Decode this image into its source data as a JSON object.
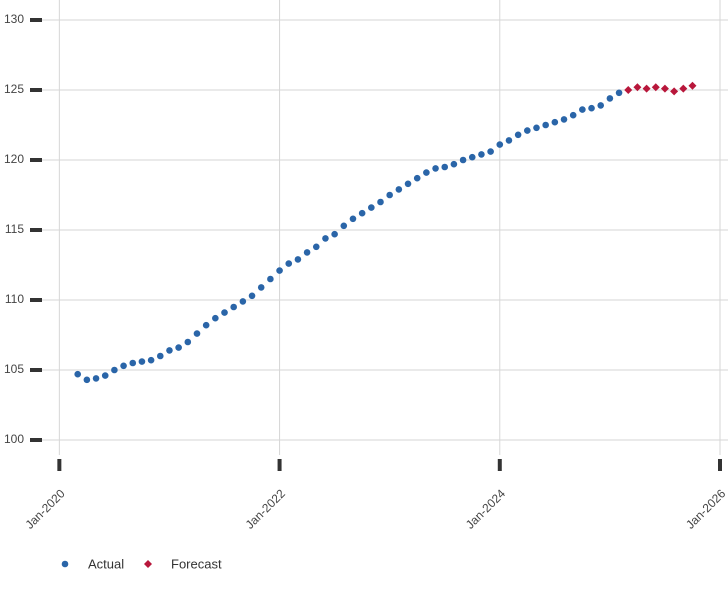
{
  "chart_data": {
    "type": "scatter",
    "series": [
      {
        "name": "Actual",
        "color": "#2a65a8",
        "marker": "circle",
        "x": [
          "2020-03",
          "2020-04",
          "2020-05",
          "2020-06",
          "2020-07",
          "2020-08",
          "2020-09",
          "2020-10",
          "2020-11",
          "2020-12",
          "2021-01",
          "2021-02",
          "2021-03",
          "2021-04",
          "2021-05",
          "2021-06",
          "2021-07",
          "2021-08",
          "2021-09",
          "2021-10",
          "2021-11",
          "2021-12",
          "2022-01",
          "2022-02",
          "2022-03",
          "2022-04",
          "2022-05",
          "2022-06",
          "2022-07",
          "2022-08",
          "2022-09",
          "2022-10",
          "2022-11",
          "2022-12",
          "2023-01",
          "2023-02",
          "2023-03",
          "2023-04",
          "2023-05",
          "2023-06",
          "2023-07",
          "2023-08",
          "2023-09",
          "2023-10",
          "2023-11",
          "2023-12",
          "2024-01",
          "2024-02",
          "2024-03",
          "2024-04",
          "2024-05",
          "2024-06",
          "2024-07",
          "2024-08",
          "2024-09",
          "2024-10",
          "2024-11",
          "2024-12",
          "2025-01",
          "2025-02"
        ],
        "values": [
          104.7,
          104.3,
          104.4,
          104.6,
          105.0,
          105.3,
          105.5,
          105.6,
          105.7,
          106.0,
          106.4,
          106.6,
          107.0,
          107.6,
          108.2,
          108.7,
          109.1,
          109.5,
          109.9,
          110.3,
          110.9,
          111.5,
          112.1,
          112.6,
          112.9,
          113.4,
          113.8,
          114.4,
          114.7,
          115.3,
          115.8,
          116.2,
          116.6,
          117.0,
          117.5,
          117.9,
          118.3,
          118.7,
          119.1,
          119.4,
          119.5,
          119.7,
          120.0,
          120.2,
          120.4,
          120.6,
          121.1,
          121.4,
          121.8,
          122.1,
          122.3,
          122.5,
          122.7,
          122.9,
          123.2,
          123.6,
          123.7,
          123.9,
          124.4,
          124.8
        ]
      },
      {
        "name": "Forecast",
        "color": "#b8173b",
        "marker": "diamond",
        "x": [
          "2025-03",
          "2025-04",
          "2025-05",
          "2025-06",
          "2025-07",
          "2025-08",
          "2025-09",
          "2025-10"
        ],
        "values": [
          125.0,
          125.2,
          125.1,
          125.2,
          125.1,
          124.9,
          125.1,
          125.3
        ]
      }
    ],
    "xlim": [
      "2019-11",
      "2026-01"
    ],
    "xticks": [
      {
        "value": "2020-01",
        "label": "Jan-2020"
      },
      {
        "value": "2022-01",
        "label": "Jan-2022"
      },
      {
        "value": "2024-01",
        "label": "Jan-2024"
      },
      {
        "value": "2026-01",
        "label": "Jan-2026"
      }
    ],
    "ylim": [
      99,
      131
    ],
    "yticks": [
      100,
      105,
      110,
      115,
      120,
      125,
      130
    ],
    "grid": true
  }
}
